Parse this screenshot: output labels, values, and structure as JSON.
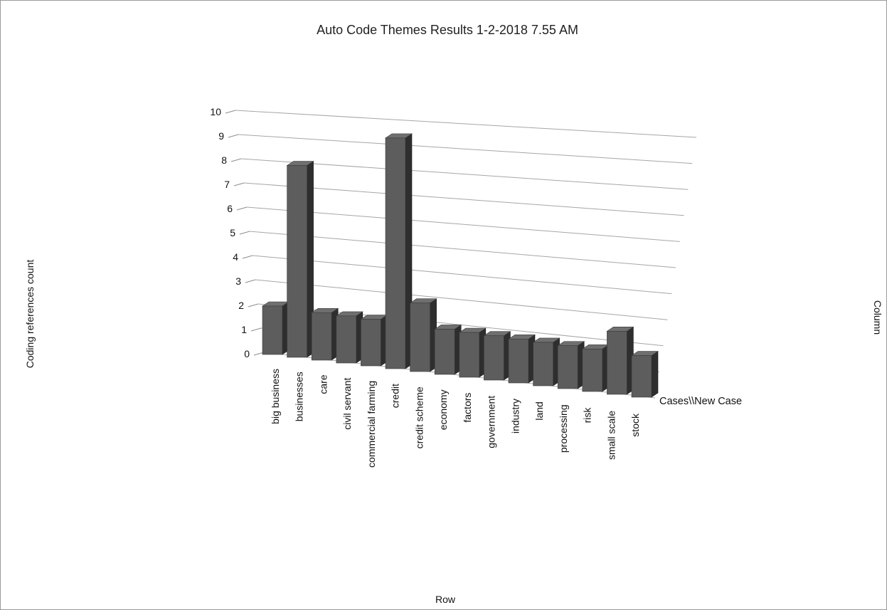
{
  "chart_data": {
    "type": "bar",
    "style": "3d-column",
    "title": "Auto Code Themes Results 1-2-2018 7.55 AM",
    "xlabel": "Row",
    "ylabel": "Coding references count",
    "zlabel": "Column",
    "ylim": [
      0,
      10
    ],
    "yticks": [
      "0",
      "1",
      "2",
      "3",
      "4",
      "5",
      "6",
      "7",
      "8",
      "9",
      "10"
    ],
    "grid": true,
    "categories": [
      "big business",
      "businesses",
      "care",
      "civil servant",
      "commercial farming",
      "credit",
      "credit scheme",
      "economy",
      "factors",
      "government",
      "industry",
      "land",
      "processing",
      "risk",
      "small scale",
      "stock"
    ],
    "series": [
      {
        "name": "Cases\\\\New Case",
        "values": [
          2,
          8,
          2,
          2,
          2,
          10,
          3,
          2,
          2,
          2,
          2,
          2,
          2,
          2,
          3,
          2
        ]
      }
    ],
    "colors": {
      "bar_front": "#5d5d5d",
      "bar_top": "#6f6f6f",
      "bar_side": "#2e2e2e",
      "grid": "#a6a6a6"
    }
  }
}
